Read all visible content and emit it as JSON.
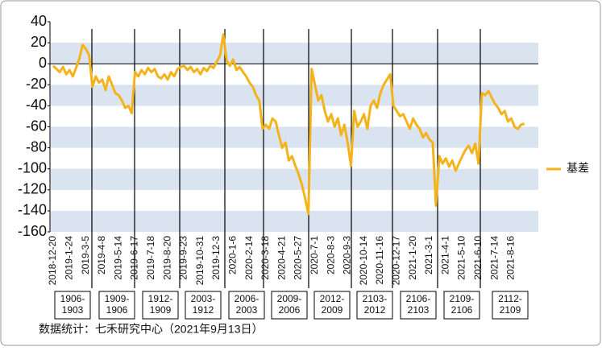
{
  "chart_data": {
    "type": "line",
    "categories": [
      "2018-12-20",
      null,
      null,
      null,
      null,
      "2019-1-24",
      null,
      null,
      null,
      null,
      "2019-3-5",
      null,
      null,
      null,
      null,
      "2019-4-8",
      null,
      null,
      null,
      null,
      "2019-5-14",
      null,
      null,
      null,
      null,
      "2019-6-17",
      null,
      null,
      null,
      null,
      "2019-7-18",
      null,
      null,
      null,
      null,
      "2019-8-20",
      null,
      null,
      null,
      null,
      "2019-9-23",
      null,
      null,
      null,
      null,
      "2019-10-31",
      null,
      null,
      null,
      null,
      "2019-12-3",
      null,
      null,
      null,
      null,
      "2020-1-6",
      null,
      null,
      null,
      null,
      "2020-2-14",
      null,
      null,
      null,
      null,
      "2020-3-18",
      null,
      null,
      null,
      null,
      "2020-4-21",
      null,
      null,
      null,
      null,
      "2020-5-27",
      null,
      null,
      null,
      null,
      "2020-7-1",
      null,
      null,
      null,
      null,
      "2020-8-3",
      null,
      null,
      null,
      null,
      "2020-9-3",
      null,
      null,
      null,
      null,
      "2020-10-14",
      null,
      null,
      null,
      null,
      "2020-11-16",
      null,
      null,
      null,
      null,
      "2020-12-17",
      null,
      null,
      null,
      null,
      "2021-1-20",
      null,
      null,
      null,
      null,
      "2021-3-1",
      null,
      null,
      null,
      null,
      "2021-4-1",
      null,
      null,
      null,
      null,
      "2021-5-10",
      null,
      null,
      null,
      null,
      "2021-6-10",
      null,
      null,
      null,
      null,
      "2021-7-14",
      null,
      null,
      null,
      null,
      "2021-8-16",
      null,
      null,
      null,
      null
    ],
    "series": [
      {
        "name": "基差",
        "color": "#f5b31b",
        "values": [
          -2,
          -5,
          -8,
          -3,
          -10,
          -6,
          -12,
          -4,
          5,
          18,
          14,
          8,
          -22,
          -12,
          -18,
          -15,
          -25,
          -12,
          -20,
          -28,
          -30,
          -35,
          -42,
          -40,
          -47,
          -8,
          -12,
          -6,
          -10,
          -4,
          -8,
          -5,
          -12,
          -14,
          -10,
          -15,
          -8,
          -12,
          -5,
          -3,
          -2,
          -6,
          -3,
          -8,
          -5,
          -10,
          -4,
          -7,
          -2,
          -4,
          2,
          8,
          28,
          3,
          -2,
          4,
          -6,
          -3,
          -8,
          -12,
          -18,
          -22,
          -30,
          -35,
          -62,
          -58,
          -62,
          -52,
          -55,
          -68,
          -80,
          -75,
          -92,
          -88,
          -97,
          -105,
          -115,
          -128,
          -143,
          -5,
          -20,
          -35,
          -30,
          -45,
          -55,
          -48,
          -60,
          -52,
          -68,
          -58,
          -75,
          -97,
          -45,
          -60,
          -55,
          -48,
          -62,
          -40,
          -35,
          -42,
          -28,
          -20,
          -15,
          -10,
          -40,
          -45,
          -50,
          -48,
          -55,
          -62,
          -52,
          -58,
          -62,
          -70,
          -66,
          -72,
          -75,
          -135,
          -88,
          -95,
          -90,
          -98,
          -92,
          -102,
          -95,
          -88,
          -82,
          -78,
          -85,
          -76,
          -95,
          -28,
          -30,
          -26,
          -32,
          -38,
          -42,
          -48,
          -45,
          -55,
          -52,
          -60,
          -62,
          -58,
          -57
        ]
      }
    ],
    "ylim": [
      -160,
      40
    ],
    "yticks": [
      40,
      20,
      0,
      -20,
      -40,
      -60,
      -80,
      -100,
      -120,
      -140,
      -160
    ],
    "legend": "right",
    "contracts": [
      [
        "1906-",
        "1903"
      ],
      [
        "1909-",
        "1906"
      ],
      [
        "1912-",
        "1909"
      ],
      [
        "2003-",
        "1912"
      ],
      [
        "2006-",
        "2003"
      ],
      [
        "2009-",
        "2006"
      ],
      [
        "2012-",
        "2009"
      ],
      [
        "2103-",
        "2012"
      ],
      [
        "2106-",
        "2103"
      ],
      [
        "2109-",
        "2106"
      ],
      [
        "2112-",
        "2109"
      ]
    ],
    "source": "数据统计：七禾研究中心（2021年9月13日）"
  }
}
